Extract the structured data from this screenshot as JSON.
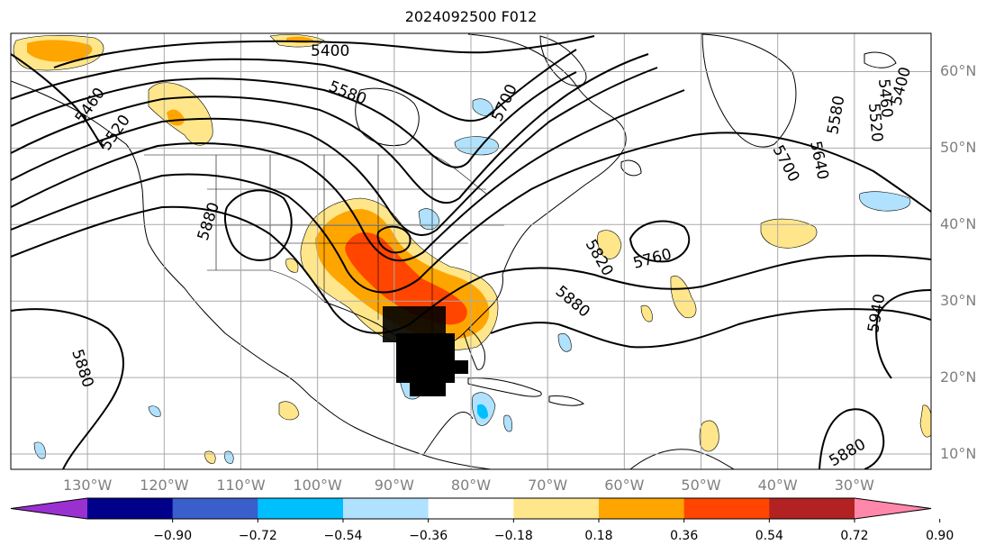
{
  "title": "2024092500 F012",
  "map": {
    "lon_range": [
      -140,
      -20
    ],
    "lat_range": [
      8,
      65
    ],
    "grid": true
  },
  "lat_labels": [
    "10°N",
    "20°N",
    "30°N",
    "40°N",
    "50°N",
    "60°N"
  ],
  "lat_values": [
    10,
    20,
    30,
    40,
    50,
    60
  ],
  "lon_labels": [
    "130°W",
    "120°W",
    "110°W",
    "100°W",
    "90°W",
    "80°W",
    "70°W",
    "60°W",
    "50°W",
    "40°W",
    "30°W"
  ],
  "lon_values": [
    -130,
    -120,
    -110,
    -100,
    -90,
    -80,
    -70,
    -60,
    -50,
    -40,
    -30
  ],
  "contour_labels": [
    "5400",
    "5460",
    "5520",
    "5580",
    "5640",
    "5700",
    "5760",
    "5820",
    "5880",
    "5940"
  ],
  "colorbar": {
    "ticks": [
      "−0.90",
      "−0.72",
      "−0.54",
      "−0.36",
      "−0.18",
      "0.18",
      "0.36",
      "0.54",
      "0.72",
      "0.90"
    ],
    "colors": [
      "#9b30d0",
      "#00008b",
      "#3a5fcd",
      "#00bfff",
      "#b0e2ff",
      "#ffffff",
      "#ffe68a",
      "#ffa500",
      "#ff4500",
      "#b22222",
      "#ff88aa"
    ],
    "extend": "both"
  },
  "colors": {
    "contour": "#000000",
    "grid": "#aaaaaa",
    "coast": "#000000",
    "label": "#7f7f7f"
  }
}
